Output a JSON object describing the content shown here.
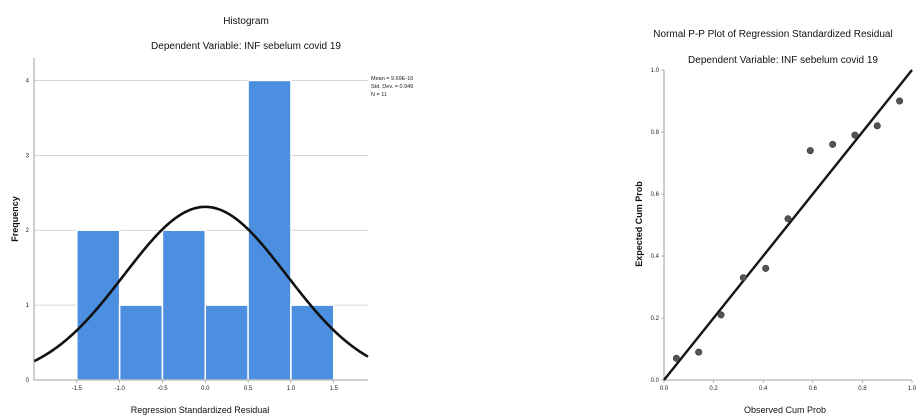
{
  "chart_data": [
    {
      "type": "bar",
      "subtype": "histogram",
      "title": "Histogram",
      "subtitle": "Dependent Variable: INF sebelum covid 19",
      "xlabel": "Regression Standardized Residual",
      "ylabel": "Frequency",
      "bins": [
        {
          "from": -1.5,
          "to": -1.0,
          "count": 2
        },
        {
          "from": -1.0,
          "to": -0.5,
          "count": 1
        },
        {
          "from": -0.5,
          "to": 0.0,
          "count": 2
        },
        {
          "from": 0.0,
          "to": 0.5,
          "count": 1
        },
        {
          "from": 0.5,
          "to": 1.0,
          "count": 4
        },
        {
          "from": 1.0,
          "to": 1.5,
          "count": 1
        }
      ],
      "xlim": [
        -2.0,
        1.9
      ],
      "ylim": [
        0,
        4.3
      ],
      "x_ticks": [
        "-1.5",
        "-1.0",
        "-0.5",
        "0.0",
        "0.5",
        "1.0",
        "1.5"
      ],
      "x_tick_values": [
        -1.5,
        -1.0,
        -0.5,
        0.0,
        0.5,
        1.0,
        1.5
      ],
      "y_ticks": [
        "0",
        "1",
        "2",
        "3",
        "4"
      ],
      "y_tick_values": [
        0,
        1,
        2,
        3,
        4
      ],
      "grid": "horizontal",
      "normal_curve": {
        "mean": 0,
        "sd": 0.949,
        "n": 11,
        "bin_width": 0.5
      },
      "stats": {
        "mean": "Mean = 9.69E-16",
        "sd": "Std. Dev. = 0.949",
        "n": "N = 11"
      },
      "bar_color": "#4c8fe0",
      "curve_color": "#111111"
    },
    {
      "type": "scatter",
      "title": "Normal P-P Plot of Regression Standardized Residual",
      "subtitle": "Dependent Variable: INF sebelum covid 19",
      "xlabel": "Observed Cum Prob",
      "ylabel": "Expected Cum Prob",
      "xlim": [
        0,
        1.0
      ],
      "ylim": [
        0,
        1.0
      ],
      "x_ticks": [
        "0.0",
        "0.2",
        "0.4",
        "0.6",
        "0.8",
        "1.0"
      ],
      "y_ticks": [
        "0.0",
        "0.2",
        "0.4",
        "0.6",
        "0.8",
        "1.0"
      ],
      "tick_values": [
        0,
        0.2,
        0.4,
        0.6,
        0.8,
        1.0
      ],
      "points": [
        {
          "x": 0.05,
          "y": 0.07
        },
        {
          "x": 0.14,
          "y": 0.09
        },
        {
          "x": 0.23,
          "y": 0.21
        },
        {
          "x": 0.32,
          "y": 0.33
        },
        {
          "x": 0.41,
          "y": 0.36
        },
        {
          "x": 0.5,
          "y": 0.52
        },
        {
          "x": 0.59,
          "y": 0.74
        },
        {
          "x": 0.68,
          "y": 0.76
        },
        {
          "x": 0.77,
          "y": 0.79
        },
        {
          "x": 0.86,
          "y": 0.82
        },
        {
          "x": 0.95,
          "y": 0.9
        }
      ],
      "reference_line": {
        "from": [
          0,
          0
        ],
        "to": [
          1,
          1
        ]
      },
      "point_color": "#555555"
    }
  ]
}
